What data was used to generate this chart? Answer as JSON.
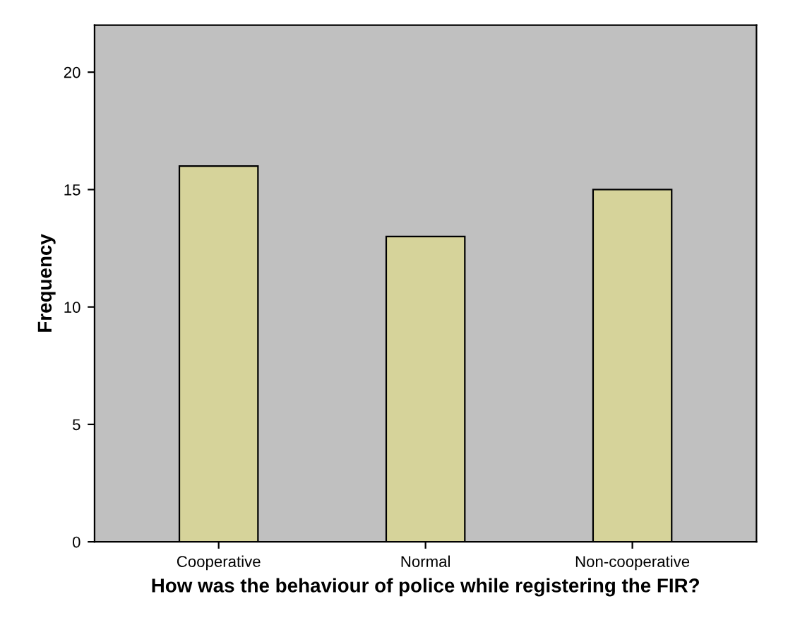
{
  "chart_data": {
    "type": "bar",
    "xlabel": "How was the behaviour of police while registering the FIR?",
    "ylabel": "Frequency",
    "categories": [
      "Cooperative",
      "Normal",
      "Non-cooperative"
    ],
    "values": [
      16,
      13,
      15
    ],
    "color": "#d6d39a",
    "ylim": [
      0,
      22
    ],
    "yticks": [
      0,
      5,
      10,
      15,
      20
    ],
    "grid": false
  }
}
